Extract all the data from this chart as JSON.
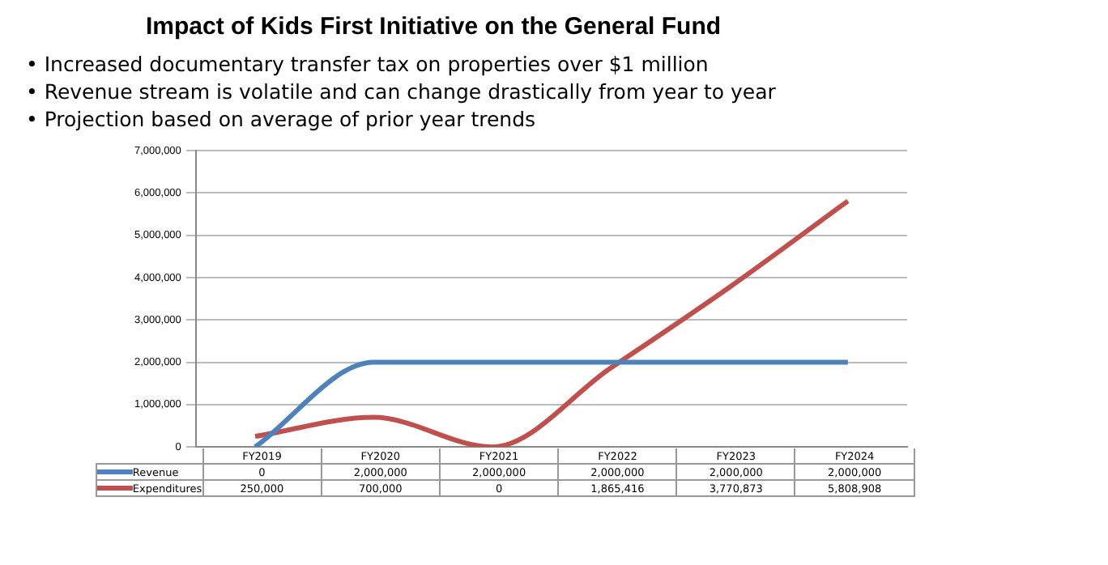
{
  "chart_data": {
    "type": "line",
    "title": "Impact of Kids First Initiative on the General Fund",
    "annotations": [
      "• Increased documentary transfer tax on properties over $1 million",
      "• Revenue stream is volatile and can change drastically from year to year",
      "• Projection based on average of prior year trends"
    ],
    "categories": [
      "FY2019",
      "FY2020",
      "FY2021",
      "FY2022",
      "FY2023",
      "FY2024"
    ],
    "series": [
      {
        "name": "Revenue",
        "color": "#4f81bd",
        "values": [
          0,
          2000000,
          2000000,
          2000000,
          2000000,
          2000000
        ],
        "value_labels": [
          "0",
          "2,000,000",
          "2,000,000",
          "2,000,000",
          "2,000,000",
          "2,000,000"
        ]
      },
      {
        "name": "Expenditures",
        "color": "#c0504d",
        "values": [
          250000,
          700000,
          0,
          1865416,
          3770873,
          5808908
        ],
        "value_labels": [
          "250,000",
          "700,000",
          "0",
          "1,865,416",
          "3,770,873",
          "5,808,908"
        ]
      }
    ],
    "ylim": [
      0,
      7000000
    ],
    "yticks": [
      0,
      {
        "value": 1000000,
        "label": "1,000,000"
      },
      {
        "value": 2000000,
        "label": "2,000,000"
      },
      {
        "value": 3000000,
        "label": "3,000,000"
      },
      {
        "value": 4000000,
        "label": "4,000,000"
      },
      {
        "value": 5000000,
        "label": "5,000,000"
      },
      {
        "value": 6000000,
        "label": "6,000,000"
      },
      {
        "value": 7000000,
        "label": "7,000,000"
      }
    ],
    "grid": "y",
    "legend": "bottom",
    "marker": "none",
    "line_style": "solid"
  }
}
